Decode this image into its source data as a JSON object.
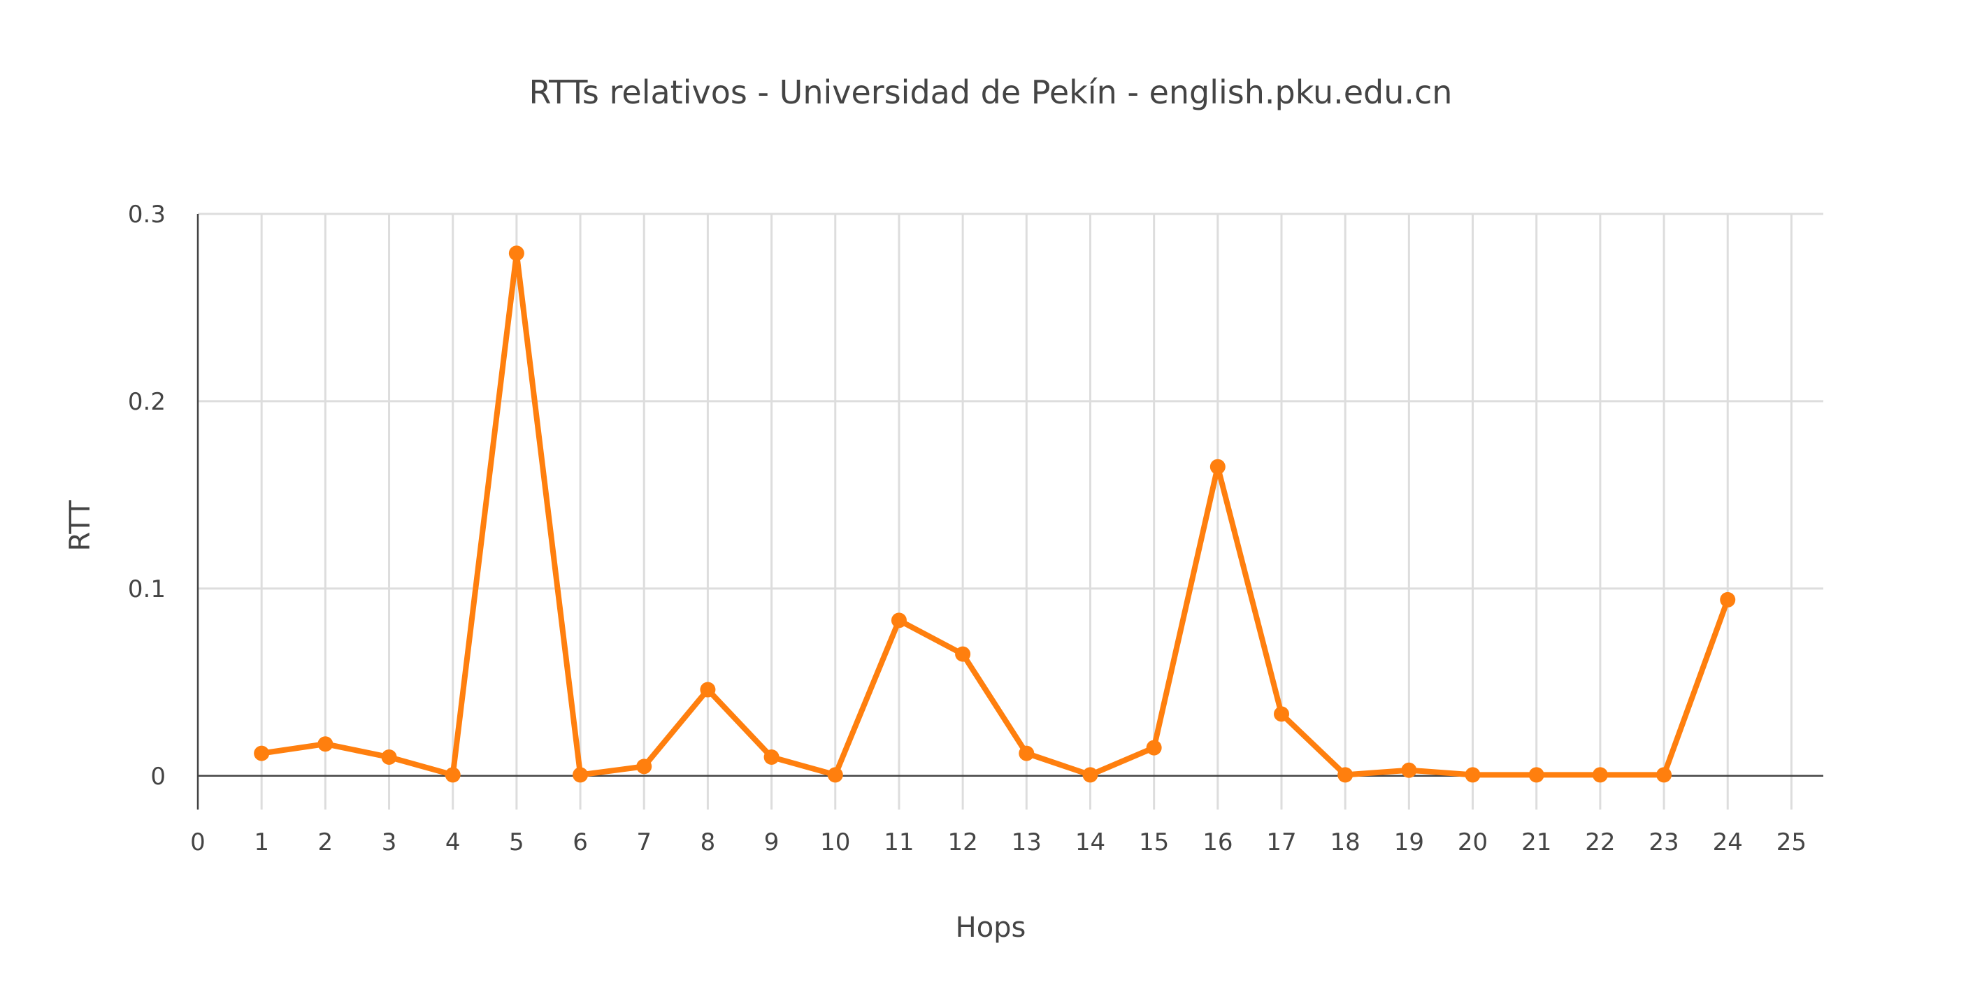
{
  "chart_data": {
    "type": "line",
    "title": "RTTs relativos - Universidad de Pekín - english.pku.edu.cn",
    "xlabel": "Hops",
    "ylabel": "RTT",
    "xlim": [
      0,
      25.5
    ],
    "ylim": [
      -0.018,
      0.3
    ],
    "x_ticks": [
      0,
      1,
      2,
      3,
      4,
      5,
      6,
      7,
      8,
      9,
      10,
      11,
      12,
      13,
      14,
      15,
      16,
      17,
      18,
      19,
      20,
      21,
      22,
      23,
      24,
      25
    ],
    "x_tick_labels": [
      "0",
      "1",
      "2",
      "3",
      "4",
      "5",
      "6",
      "7",
      "8",
      "9",
      "10",
      "11",
      "12",
      "13",
      "14",
      "15",
      "16",
      "17",
      "18",
      "19",
      "20",
      "21",
      "22",
      "23",
      "24",
      "25"
    ],
    "y_ticks": [
      0,
      0.1,
      0.2,
      0.3
    ],
    "y_tick_labels": [
      "0",
      "0.1",
      "0.2",
      "0.3"
    ],
    "grid": true,
    "legend": false,
    "series": [
      {
        "color": "#ff7f0e",
        "x": [
          1,
          2,
          3,
          4,
          5,
          6,
          7,
          8,
          9,
          10,
          11,
          12,
          13,
          14,
          15,
          16,
          17,
          18,
          19,
          20,
          21,
          22,
          23,
          24
        ],
        "y": [
          0.012,
          0.017,
          0.01,
          0.0005,
          0.279,
          0.0005,
          0.005,
          0.046,
          0.01,
          0.0005,
          0.083,
          0.065,
          0.012,
          0.0005,
          0.015,
          0.165,
          0.033,
          0.0005,
          0.003,
          0.0005,
          0.0005,
          0.0005,
          0.0005,
          0.094
        ]
      }
    ]
  }
}
